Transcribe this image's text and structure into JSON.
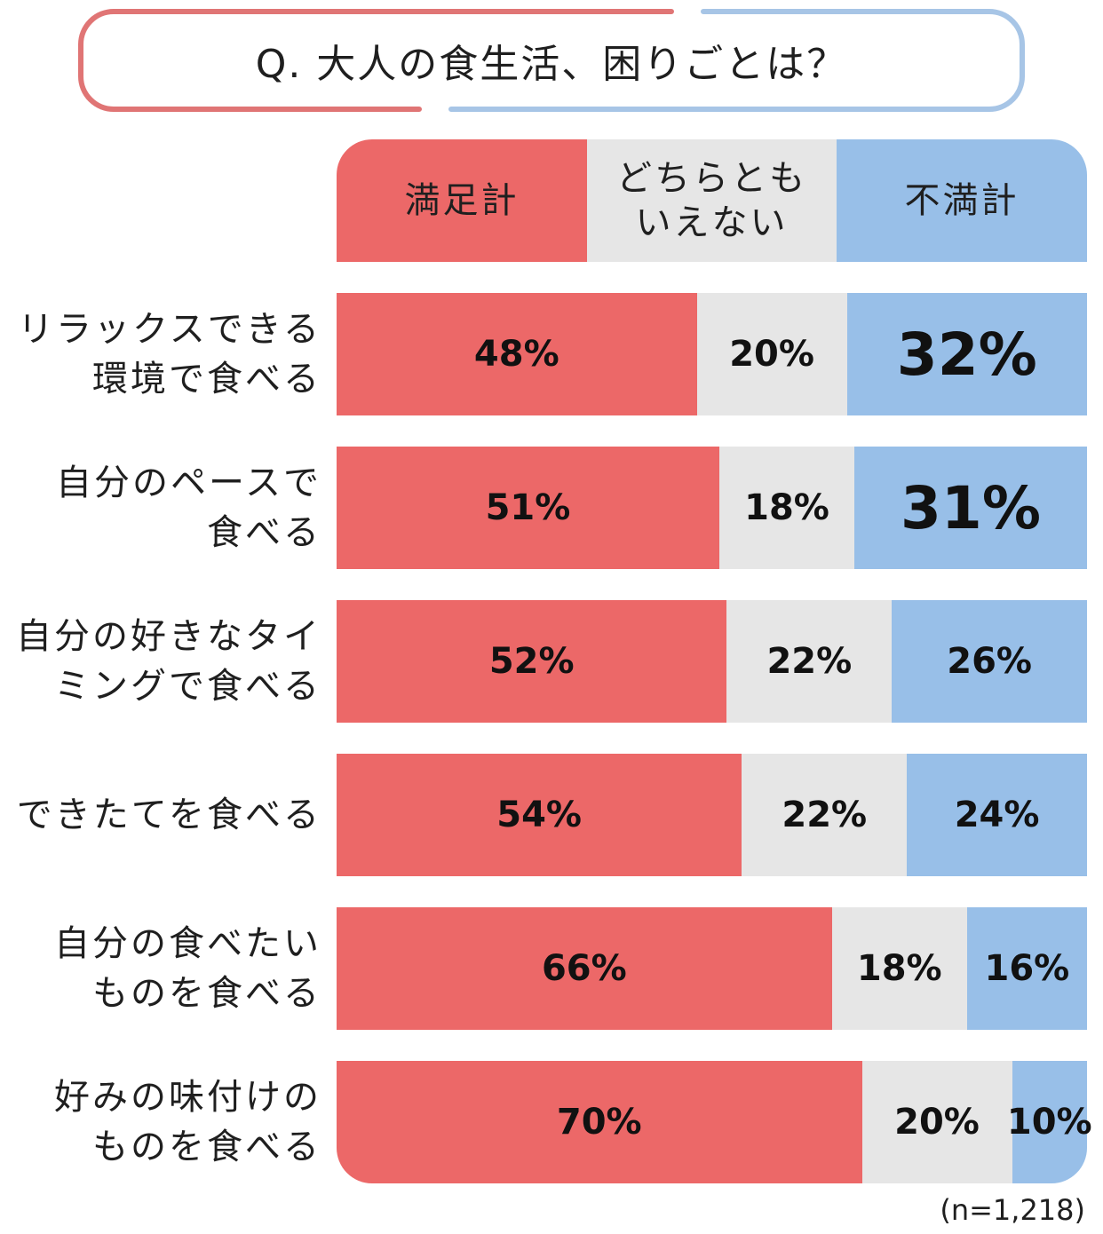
{
  "title": "Q. 大人の食生活、困りごとは？",
  "note": "(n=1,218)",
  "colors": {
    "satisfied": "#ec6868",
    "neutral": "#e6e6e6",
    "dissatisfied": "#98bfe8"
  },
  "chart_data": {
    "type": "bar",
    "orientation": "horizontal",
    "stacked": true,
    "percent_stacked": true,
    "title": "Q. 大人の食生活、困りごとは？",
    "legend": [
      "満足計",
      "どちらとも\nいえない",
      "不満計"
    ],
    "legend_position": "top",
    "categories": [
      [
        "リラックスできる",
        "環境で食べる"
      ],
      [
        "自分のペースで",
        "食べる"
      ],
      [
        "自分の好きなタイ",
        "ミングで食べる"
      ],
      [
        "できたてを食べる"
      ],
      [
        "自分の食べたい",
        "ものを食べる"
      ],
      [
        "好みの味付けの",
        "ものを食べる"
      ]
    ],
    "series": [
      {
        "name": "満足計",
        "values": [
          48,
          51,
          52,
          54,
          66,
          70
        ],
        "labels": [
          "48%",
          "51%",
          "52%",
          "54%",
          "66%",
          "70%"
        ]
      },
      {
        "name": "どちらともいえない",
        "values": [
          20,
          18,
          22,
          22,
          18,
          20
        ],
        "labels": [
          "20%",
          "18%",
          "22%",
          "22%",
          "18%",
          "20%"
        ]
      },
      {
        "name": "不満計",
        "values": [
          32,
          31,
          26,
          24,
          16,
          10
        ],
        "labels": [
          "32%",
          "31%",
          "26%",
          "24%",
          "16%",
          "10%"
        ]
      }
    ],
    "emphasized": [
      {
        "series": 2,
        "category": 0
      },
      {
        "series": 2,
        "category": 1
      }
    ],
    "xlim": [
      0,
      100
    ],
    "grid": false
  }
}
